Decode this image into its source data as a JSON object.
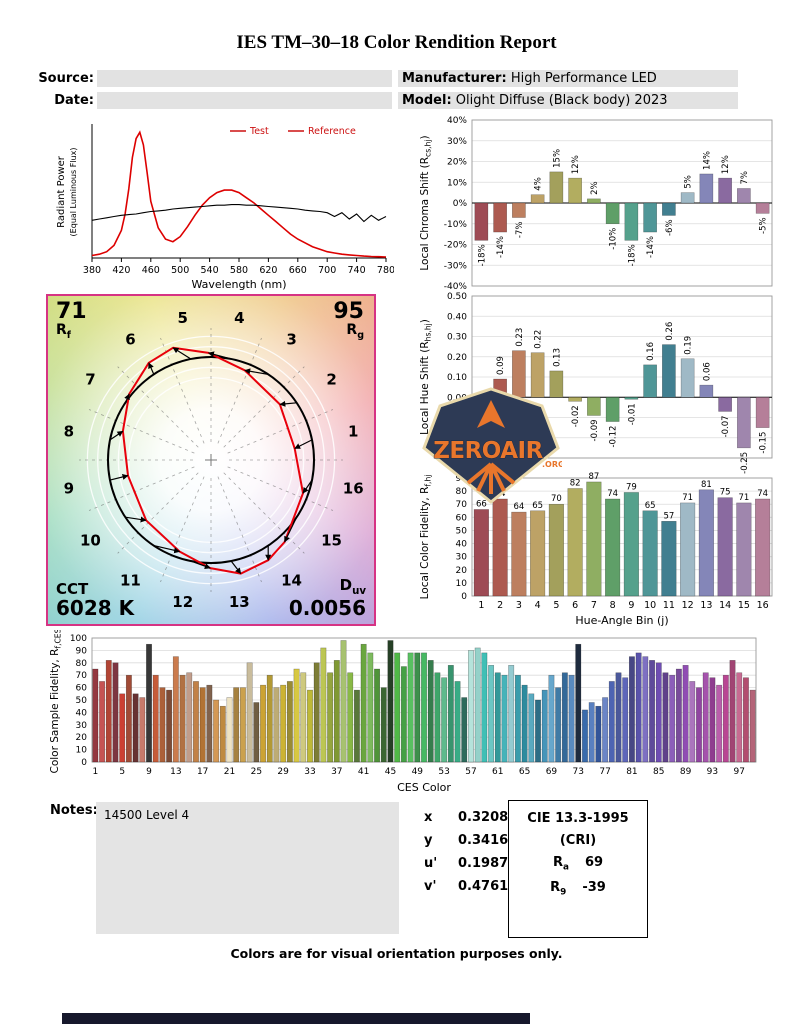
{
  "title": "IES TM–30–18 Color Rendition Report",
  "meta": {
    "source_label": "Source:",
    "date_label": "Date:",
    "manufacturer_label": "Manufacturer:",
    "manufacturer_value": "High Performance LED",
    "model_label": "Model:",
    "model_value": "Olight Diffuse (Black body) 2023"
  },
  "colors": {
    "test_line": "#dd0000",
    "reference_line": "#000000",
    "legend_text": "#cc1111",
    "cvg_border": "#d63384",
    "field_bg": "#e2e2e2",
    "hue_bins": [
      "#9e4b55",
      "#ad5a50",
      "#bd7f5f",
      "#bda266",
      "#a3a05c",
      "#b2ad60",
      "#8fae62",
      "#5f9f68",
      "#55a18c",
      "#4f9697",
      "#417f90",
      "#9fb9c6",
      "#8486b8",
      "#8a6aa0",
      "#9f86ad",
      "#b57f99"
    ]
  },
  "chart_data": [
    {
      "id": "spd",
      "type": "line",
      "xlabel": "Wavelength (nm)",
      "ylabel_lines": [
        "Radiant Power",
        "(Equal Luminous Flux)"
      ],
      "xlim": [
        380,
        780
      ],
      "ymax": 1.05,
      "xticks": [
        380,
        420,
        460,
        500,
        540,
        580,
        620,
        660,
        700,
        740,
        780
      ],
      "legend_color": "#cc1111",
      "legend_position": "top-right",
      "series": [
        {
          "name": "Test",
          "color": "#dd0000",
          "width": 1.6,
          "x": [
            380,
            390,
            400,
            410,
            420,
            425,
            430,
            435,
            440,
            445,
            450,
            455,
            460,
            470,
            480,
            490,
            500,
            510,
            520,
            530,
            540,
            550,
            560,
            570,
            580,
            590,
            600,
            610,
            620,
            630,
            640,
            650,
            660,
            670,
            680,
            690,
            700,
            710,
            720,
            730,
            740,
            750,
            760,
            770,
            780
          ],
          "y": [
            0.02,
            0.03,
            0.05,
            0.1,
            0.22,
            0.35,
            0.55,
            0.8,
            0.95,
            1.0,
            0.9,
            0.68,
            0.45,
            0.24,
            0.15,
            0.13,
            0.17,
            0.25,
            0.34,
            0.42,
            0.48,
            0.52,
            0.54,
            0.54,
            0.52,
            0.48,
            0.44,
            0.39,
            0.34,
            0.29,
            0.24,
            0.19,
            0.15,
            0.12,
            0.09,
            0.07,
            0.05,
            0.04,
            0.03,
            0.025,
            0.02,
            0.015,
            0.012,
            0.01,
            0.008
          ]
        },
        {
          "name": "Reference",
          "color": "#000000",
          "width": 1.1,
          "x": [
            380,
            390,
            400,
            410,
            420,
            430,
            440,
            450,
            460,
            470,
            480,
            490,
            500,
            510,
            520,
            530,
            540,
            550,
            560,
            570,
            580,
            590,
            600,
            610,
            620,
            630,
            640,
            650,
            660,
            670,
            680,
            690,
            700,
            710,
            720,
            730,
            740,
            750,
            760,
            770,
            780
          ],
          "y": [
            0.3,
            0.31,
            0.32,
            0.33,
            0.34,
            0.345,
            0.35,
            0.36,
            0.37,
            0.375,
            0.38,
            0.39,
            0.395,
            0.4,
            0.405,
            0.41,
            0.415,
            0.42,
            0.42,
            0.425,
            0.425,
            0.42,
            0.42,
            0.415,
            0.41,
            0.405,
            0.4,
            0.395,
            0.39,
            0.38,
            0.375,
            0.37,
            0.36,
            0.33,
            0.36,
            0.31,
            0.35,
            0.29,
            0.34,
            0.3,
            0.33
          ]
        }
      ]
    },
    {
      "id": "local_chroma_shift",
      "type": "bar",
      "ylabel": "Local Chroma Shift (R_{cs,hj})",
      "categories": [
        1,
        2,
        3,
        4,
        5,
        6,
        7,
        8,
        9,
        10,
        11,
        12,
        13,
        14,
        15,
        16
      ],
      "values": [
        -18,
        -14,
        -7,
        4,
        15,
        12,
        2,
        -10,
        -18,
        -14,
        -6,
        5,
        14,
        12,
        7,
        -5
      ],
      "labels": [
        "-18%",
        "-14%",
        "-7%",
        "4%",
        "15%",
        "12%",
        "2%",
        "-10%",
        "-18%",
        "-14%",
        "-6%",
        "5%",
        "14%",
        "12%",
        "7%",
        "-5%"
      ],
      "ylim": [
        -40,
        40
      ],
      "ystep": 10,
      "grid": true
    },
    {
      "id": "local_hue_shift",
      "type": "bar",
      "ylabel": "Local Hue Shift (R_{hs,hj})",
      "categories": [
        1,
        2,
        3,
        4,
        5,
        6,
        7,
        8,
        9,
        10,
        11,
        12,
        13,
        14,
        15,
        16
      ],
      "values": [
        -0.06,
        0.09,
        0.23,
        0.22,
        0.13,
        -0.02,
        -0.09,
        -0.12,
        -0.01,
        0.16,
        0.26,
        0.19,
        0.06,
        -0.07,
        -0.25,
        -0.15
      ],
      "labels": [
        "-0.06",
        "0.09",
        "0.23",
        "0.22",
        "0.13",
        "-0.02",
        "-0.09",
        "-0.12",
        "-0.01",
        "0.16",
        "0.26",
        "0.19",
        "0.06",
        "-0.07",
        "-0.25",
        "-0.15"
      ],
      "ylim": [
        -0.3,
        0.5
      ],
      "ystep": 0.1,
      "grid": true
    },
    {
      "id": "local_color_fidelity",
      "type": "bar",
      "ylabel": "Local Color Fidelity, R_{f,hj}",
      "xlabel": "Hue-Angle Bin (j)",
      "categories": [
        1,
        2,
        3,
        4,
        5,
        6,
        7,
        8,
        9,
        10,
        11,
        12,
        13,
        14,
        15,
        16
      ],
      "values": [
        66,
        74,
        64,
        65,
        70,
        82,
        87,
        74,
        79,
        65,
        57,
        71,
        81,
        75,
        71,
        74
      ],
      "labels": [
        "66",
        "74",
        "64",
        "65",
        "70",
        "82",
        "87",
        "74",
        "79",
        "65",
        "57",
        "71",
        "81",
        "75",
        "71",
        "74"
      ],
      "ylim": [
        0,
        90
      ],
      "ystep": 10,
      "show_xticks": true,
      "grid": true
    },
    {
      "id": "ces_fidelity",
      "type": "bar",
      "ylabel": "Color Sample Fidelity, R_{f,CESi}",
      "xlabel": "CES Color",
      "xtick_values": [
        1,
        5,
        9,
        13,
        17,
        21,
        25,
        29,
        33,
        37,
        41,
        45,
        49,
        53,
        57,
        61,
        65,
        69,
        73,
        77,
        81,
        85,
        89,
        93,
        97
      ],
      "ylim": [
        0,
        100
      ],
      "ystep": 10,
      "grid": true,
      "values": [
        75,
        65,
        82,
        80,
        55,
        70,
        55,
        52,
        95,
        70,
        60,
        58,
        85,
        70,
        72,
        65,
        60,
        62,
        50,
        45,
        52,
        60,
        60,
        80,
        48,
        62,
        70,
        60,
        62,
        65,
        75,
        72,
        58,
        80,
        92,
        72,
        82,
        98,
        72,
        58,
        95,
        88,
        75,
        60,
        98,
        88,
        77,
        88,
        88,
        88,
        82,
        72,
        68,
        78,
        65,
        52,
        90,
        92,
        88,
        78,
        72,
        70,
        78,
        70,
        62,
        55,
        50,
        58,
        70,
        60,
        72,
        70,
        95,
        42,
        48,
        45,
        52,
        65,
        72,
        68,
        85,
        88,
        85,
        82,
        80,
        72,
        70,
        75,
        78,
        65,
        60,
        72,
        68,
        62,
        70,
        82,
        72,
        68,
        58
      ],
      "bar_colors": [
        "hsl(355,45%,40%)",
        "hsl(0,50%,55%)",
        "hsl(8,55%,45%)",
        "hsl(350,40%,35%)",
        "hsl(5,60%,50%)",
        "hsl(12,50%,42%)",
        "hsl(0,35%,30%)",
        "hsl(10,45%,60%)",
        "hsl(0,0%,22%)",
        "hsl(15,55%,50%)",
        "hsl(20,50%,45%)",
        "hsl(18,40%,35%)",
        "hsl(22,55%,55%)",
        "hsl(25,45%,48%)",
        "hsl(20,30%,65%)",
        "hsl(28,50%,52%)",
        "hsl(30,55%,45%)",
        "hsl(25,25%,40%)",
        "hsl(32,60%,58%)",
        "hsl(35,50%,50%)",
        "hsl(45,55%,85%)",
        "hsl(38,45%,45%)",
        "hsl(40,55%,55%)",
        "hsl(42,30%,70%)",
        "hsl(36,25%,35%)",
        "hsl(44,60%,50%)",
        "hsl(48,55%,45%)",
        "hsl(46,35%,60%)",
        "hsl(50,60%,50%)",
        "hsl(52,50%,40%)",
        "hsl(54,65%,55%)",
        "hsl(56,45%,65%)",
        "hsl(58,55%,48%)",
        "hsl(60,40%,35%)",
        "hsl(65,50%,55%)",
        "hsl(70,45%,45%)",
        "hsl(75,50%,40%)",
        "hsl(80,40%,60%)",
        "hsl(85,45%,50%)",
        "hsl(90,35%,35%)",
        "hsl(95,45%,45%)",
        "hsl(100,40%,55%)",
        "hsl(105,45%,40%)",
        "hsl(110,35%,30%)",
        "hsl(120,25%,20%)",
        "hsl(115,45%,50%)",
        "hsl(120,40%,45%)",
        "hsl(125,45%,55%)",
        "hsl(130,40%,40%)",
        "hsl(135,45%,50%)",
        "hsl(140,40%,35%)",
        "hsl(145,45%,45%)",
        "hsl(150,40%,55%)",
        "hsl(155,45%,40%)",
        "hsl(160,50%,45%)",
        "hsl(165,40%,30%)",
        "hsl(170,45%,80%)",
        "hsl(172,40%,70%)",
        "hsl(175,50%,50%)",
        "hsl(178,45%,60%)",
        "hsl(180,50%,40%)",
        "hsl(183,45%,50%)",
        "hsl(186,40%,70%)",
        "hsl(188,50%,45%)",
        "hsl(190,55%,40%)",
        "hsl(193,45%,55%)",
        "hsl(196,50%,35%)",
        "hsl(199,45%,50%)",
        "hsl(202,50%,60%)",
        "hsl(205,45%,45%)",
        "hsl(208,50%,40%)",
        "hsl(211,45%,55%)",
        "hsl(215,35%,18%)",
        "hsl(214,50%,45%)",
        "hsl(217,45%,55%)",
        "hsl(220,50%,40%)",
        "hsl(223,45%,60%)",
        "hsl(226,40%,50%)",
        "hsl(230,35%,45%)",
        "hsl(235,40%,55%)",
        "hsl(240,30%,40%)",
        "hsl(245,35%,50%)",
        "hsl(250,40%,60%)",
        "hsl(255,35%,45%)",
        "hsl(260,40%,50%)",
        "hsl(265,35%,40%)",
        "hsl(270,40%,55%)",
        "hsl(275,35%,45%)",
        "hsl(280,40%,50%)",
        "hsl(285,35%,60%)",
        "hsl(290,40%,45%)",
        "hsl(295,35%,50%)",
        "hsl(300,40%,40%)",
        "hsl(310,40%,55%)",
        "hsl(320,45%,50%)",
        "hsl(330,40%,45%)",
        "hsl(335,45%,60%)",
        "hsl(340,40%,50%)",
        "hsl(345,35%,55%)"
      ]
    }
  ],
  "cvg": {
    "rf_value": "71",
    "rf_label": "R_{f}",
    "rg_value": "95",
    "rg_label": "R_{g}",
    "cct_label": "CCT",
    "cct_value": "6028 K",
    "duv_label": "D_{uv}",
    "duv_value": "0.0056",
    "bin_numbers": [
      1,
      2,
      3,
      4,
      5,
      6,
      7,
      8,
      9,
      10,
      11,
      12,
      13,
      14,
      15,
      16
    ]
  },
  "notes": {
    "label": "Notes:",
    "text": "14500 Level 4"
  },
  "chromaticity": {
    "rows": [
      [
        "x",
        "0.3208"
      ],
      [
        "y",
        "0.3416"
      ],
      [
        "u'",
        "0.1987"
      ],
      [
        "v'",
        "0.4761"
      ]
    ]
  },
  "cie_box": {
    "line1": "CIE 13.3-1995",
    "line2": "(CRI)",
    "ra_label": "R_{a}",
    "ra_value": "69",
    "r9_label": "R_{9}",
    "r9_value": "-39"
  },
  "watermark": {
    "text": "ZEROAIR",
    "suffix": ".ORG"
  },
  "footer": "Colors are for visual orientation purposes only."
}
